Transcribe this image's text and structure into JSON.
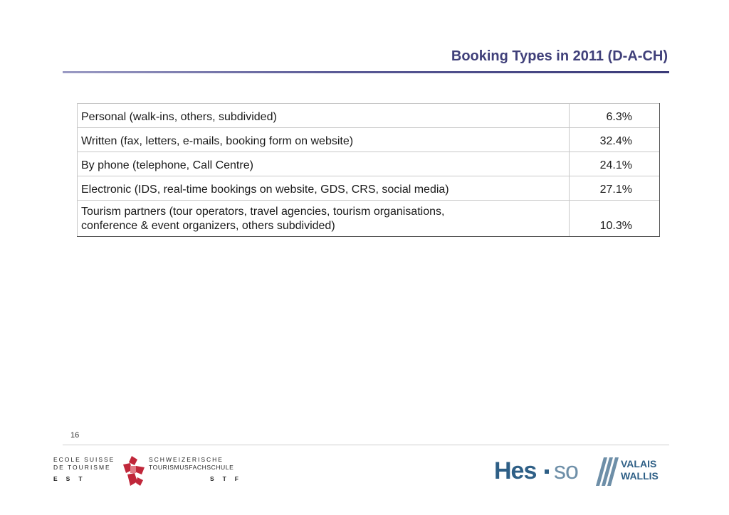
{
  "slide": {
    "title": "Booking Types in 2011 (D-A-CH)",
    "page_number": "16"
  },
  "table": {
    "rows": [
      {
        "label": "Personal (walk-ins, others, subdivided)",
        "value": "6.3%"
      },
      {
        "label": "Written (fax, letters, e-mails, booking form on website)",
        "value": "32.4%"
      },
      {
        "label": "By phone (telephone, Call Centre)",
        "value": "24.1%"
      },
      {
        "label": "Electronic (IDS, real-time bookings on website, GDS, CRS, social media)",
        "value": "27.1%"
      },
      {
        "label_line1": "Tourism partners (tour operators, travel agencies, tourism organisations,",
        "label_line2": "conference & event organizers, others subdivided)",
        "value": "10.3%"
      }
    ]
  },
  "footer": {
    "est_logo": {
      "left_line1": "ECOLE SUISSE",
      "left_line2": "DE TOURISME",
      "left_short": "EST",
      "right_line1": "SCHWEIZERISCHE",
      "right_line2": "TOURISMUSFACHSCHULE",
      "right_short": "STF"
    },
    "hes_logo": {
      "brand": "Hes",
      "so": "so",
      "region_line1": "VALAIS",
      "region_line2": "WALLIS"
    }
  },
  "colors": {
    "title": "#40407a",
    "hes_blue": "#2e5f86",
    "hes_light": "#6e8fa8",
    "est_red": "#c0273a"
  }
}
